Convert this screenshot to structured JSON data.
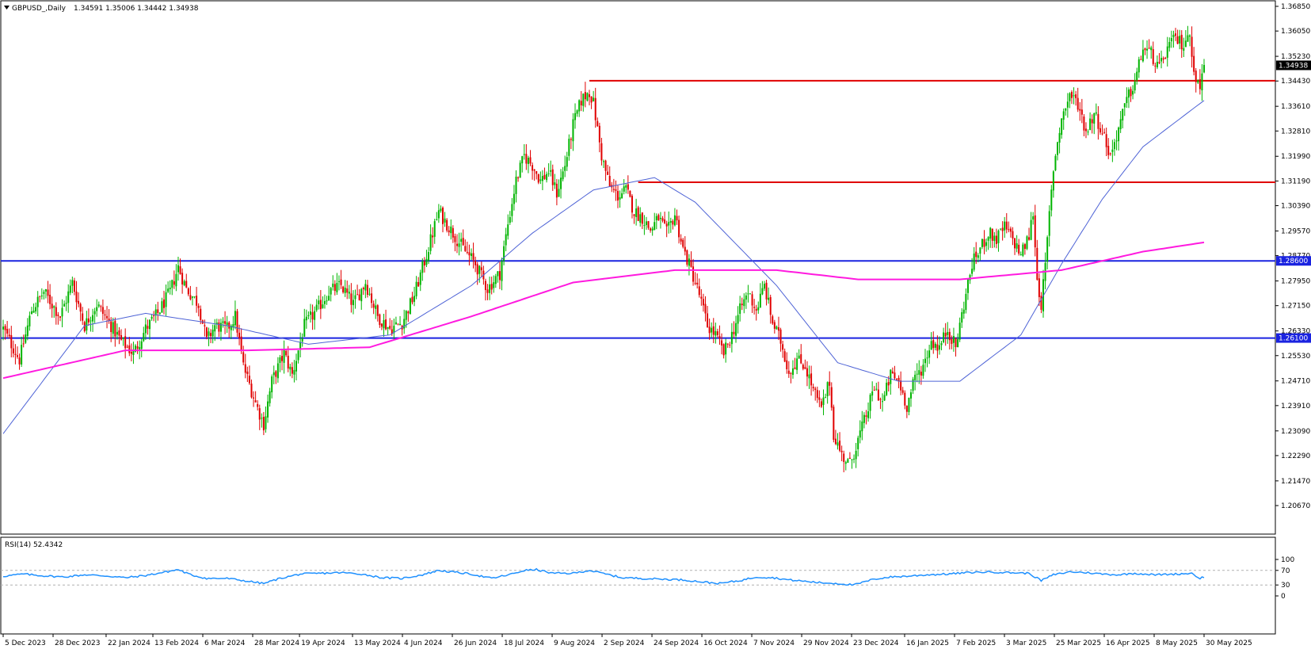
{
  "header": {
    "symbol": "GBPUSD_,Daily",
    "ohlc": "1.34591 1.35006 1.34442 1.34938"
  },
  "colors": {
    "up": "#00b400",
    "down": "#e00000",
    "ma_fast": "#4e63d6",
    "ma_slow": "#ff1adf",
    "level_blue": "#1a23e0",
    "level_red": "#e00000",
    "rsi": "#1e90ff",
    "price_tag_bg": "#000000"
  },
  "chart_data": [
    {
      "type": "candlestick",
      "title": "GBPUSD_,Daily",
      "ylim": [
        1.2067,
        1.3685
      ],
      "y_ticks": [
        "1.36850",
        "1.36050",
        "1.35230",
        "1.34430",
        "1.33610",
        "1.32810",
        "1.31990",
        "1.31190",
        "1.30390",
        "1.29570",
        "1.28770",
        "1.27950",
        "1.27150",
        "1.26330",
        "1.25530",
        "1.24710",
        "1.23910",
        "1.23090",
        "1.22290",
        "1.21470",
        "1.20670"
      ],
      "x_ticks": [
        "5 Dec 2023",
        "28 Dec 2023",
        "22 Jan 2024",
        "13 Feb 2024",
        "6 Mar 2024",
        "28 Mar 2024",
        "19 Apr 2024",
        "13 May 2024",
        "4 Jun 2024",
        "26 Jun 2024",
        "18 Jul 2024",
        "9 Aug 2024",
        "2 Sep 2024",
        "24 Sep 2024",
        "16 Oct 2024",
        "7 Nov 2024",
        "29 Nov 2024",
        "23 Dec 2024",
        "16 Jan 2025",
        "7 Feb 2025",
        "3 Mar 2025",
        "25 Mar 2025",
        "16 Apr 2025",
        "8 May 2025",
        "30 May 2025"
      ],
      "last_price": "1.34938",
      "last_price_value": 1.34938,
      "close_path": [
        [
          0,
          1.264
        ],
        [
          8,
          1.254
        ],
        [
          14,
          1.27
        ],
        [
          20,
          1.276
        ],
        [
          28,
          1.268
        ],
        [
          34,
          1.279
        ],
        [
          40,
          1.265
        ],
        [
          46,
          1.272
        ],
        [
          52,
          1.266
        ],
        [
          58,
          1.26
        ],
        [
          64,
          1.256
        ],
        [
          70,
          1.264
        ],
        [
          76,
          1.269
        ],
        [
          82,
          1.276
        ],
        [
          86,
          1.284
        ],
        [
          90,
          1.277
        ],
        [
          96,
          1.272
        ],
        [
          100,
          1.26
        ],
        [
          104,
          1.265
        ],
        [
          110,
          1.264
        ],
        [
          114,
          1.268
        ],
        [
          118,
          1.252
        ],
        [
          124,
          1.24
        ],
        [
          128,
          1.233
        ],
        [
          132,
          1.247
        ],
        [
          138,
          1.256
        ],
        [
          142,
          1.249
        ],
        [
          148,
          1.265
        ],
        [
          154,
          1.27
        ],
        [
          160,
          1.276
        ],
        [
          166,
          1.278
        ],
        [
          172,
          1.272
        ],
        [
          178,
          1.279
        ],
        [
          184,
          1.268
        ],
        [
          190,
          1.264
        ],
        [
          196,
          1.266
        ],
        [
          202,
          1.275
        ],
        [
          208,
          1.288
        ],
        [
          214,
          1.302
        ],
        [
          220,
          1.296
        ],
        [
          226,
          1.29
        ],
        [
          232,
          1.285
        ],
        [
          238,
          1.277
        ],
        [
          244,
          1.282
        ],
        [
          248,
          1.298
        ],
        [
          252,
          1.312
        ],
        [
          256,
          1.32
        ],
        [
          260,
          1.317
        ],
        [
          264,
          1.312
        ],
        [
          268,
          1.315
        ],
        [
          272,
          1.308
        ],
        [
          276,
          1.317
        ],
        [
          280,
          1.33
        ],
        [
          284,
          1.338
        ],
        [
          288,
          1.341
        ],
        [
          290,
          1.337
        ],
        [
          294,
          1.32
        ],
        [
          298,
          1.31
        ],
        [
          302,
          1.307
        ],
        [
          306,
          1.309
        ],
        [
          310,
          1.302
        ],
        [
          314,
          1.3
        ],
        [
          318,
          1.296
        ],
        [
          322,
          1.3
        ],
        [
          326,
          1.295
        ],
        [
          330,
          1.301
        ],
        [
          334,
          1.29
        ],
        [
          338,
          1.283
        ],
        [
          342,
          1.275
        ],
        [
          346,
          1.265
        ],
        [
          350,
          1.262
        ],
        [
          354,
          1.256
        ],
        [
          358,
          1.262
        ],
        [
          362,
          1.27
        ],
        [
          366,
          1.276
        ],
        [
          370,
          1.27
        ],
        [
          374,
          1.278
        ],
        [
          378,
          1.266
        ],
        [
          382,
          1.26
        ],
        [
          386,
          1.25
        ],
        [
          390,
          1.254
        ],
        [
          394,
          1.252
        ],
        [
          398,
          1.244
        ],
        [
          402,
          1.238
        ],
        [
          406,
          1.247
        ],
        [
          408,
          1.23
        ],
        [
          412,
          1.223
        ],
        [
          416,
          1.22
        ],
        [
          420,
          1.228
        ],
        [
          424,
          1.236
        ],
        [
          428,
          1.245
        ],
        [
          432,
          1.24
        ],
        [
          436,
          1.249
        ],
        [
          440,
          1.247
        ],
        [
          444,
          1.239
        ],
        [
          448,
          1.248
        ],
        [
          452,
          1.252
        ],
        [
          456,
          1.26
        ],
        [
          460,
          1.258
        ],
        [
          464,
          1.264
        ],
        [
          468,
          1.258
        ],
        [
          472,
          1.272
        ],
        [
          476,
          1.285
        ],
        [
          480,
          1.29
        ],
        [
          484,
          1.295
        ],
        [
          488,
          1.293
        ],
        [
          492,
          1.297
        ],
        [
          496,
          1.293
        ],
        [
          500,
          1.288
        ],
        [
          504,
          1.294
        ],
        [
          506,
          1.302
        ],
        [
          508,
          1.28
        ],
        [
          510,
          1.272
        ],
        [
          512,
          1.284
        ],
        [
          514,
          1.301
        ],
        [
          516,
          1.316
        ],
        [
          518,
          1.325
        ],
        [
          520,
          1.332
        ],
        [
          524,
          1.34
        ],
        [
          528,
          1.337
        ],
        [
          532,
          1.328
        ],
        [
          536,
          1.334
        ],
        [
          540,
          1.328
        ],
        [
          544,
          1.32
        ],
        [
          548,
          1.329
        ],
        [
          552,
          1.338
        ],
        [
          556,
          1.344
        ],
        [
          560,
          1.355
        ],
        [
          564,
          1.353
        ],
        [
          568,
          1.348
        ],
        [
          572,
          1.355
        ],
        [
          576,
          1.358
        ],
        [
          580,
          1.356
        ],
        [
          582,
          1.36
        ],
        [
          584,
          1.354
        ],
        [
          586,
          1.345
        ],
        [
          588,
          1.342
        ],
        [
          590,
          1.3494
        ]
      ],
      "candle_count": 591,
      "x_tick_indices": [
        0,
        16,
        33,
        48,
        64,
        80,
        95,
        112,
        128,
        144,
        160,
        176,
        192,
        208,
        224,
        240,
        256,
        272,
        289,
        305,
        321,
        337,
        353,
        369,
        385
      ],
      "horizontal_levels": [
        {
          "value": 1.286,
          "label": "1.28600",
          "color": "blue"
        },
        {
          "value": 1.261,
          "label": "1.26100",
          "color": "blue"
        },
        {
          "value": 1.3444,
          "color": "red",
          "from_index": 288
        },
        {
          "value": 1.3115,
          "color": "red",
          "from_index": 312
        }
      ],
      "moving_averages": [
        {
          "color": "blue",
          "path": [
            [
              0,
              1.23
            ],
            [
              40,
              1.265
            ],
            [
              70,
              1.269
            ],
            [
              110,
              1.265
            ],
            [
              150,
              1.259
            ],
            [
              190,
              1.262
            ],
            [
              230,
              1.278
            ],
            [
              260,
              1.295
            ],
            [
              290,
              1.309
            ],
            [
              320,
              1.313
            ],
            [
              340,
              1.305
            ],
            [
              380,
              1.278
            ],
            [
              410,
              1.253
            ],
            [
              440,
              1.247
            ],
            [
              470,
              1.247
            ],
            [
              500,
              1.262
            ],
            [
              520,
              1.285
            ],
            [
              540,
              1.306
            ],
            [
              560,
              1.323
            ],
            [
              590,
              1.338
            ]
          ]
        },
        {
          "color": "magenta",
          "path": [
            [
              0,
              1.248
            ],
            [
              60,
              1.257
            ],
            [
              120,
              1.257
            ],
            [
              180,
              1.258
            ],
            [
              230,
              1.268
            ],
            [
              280,
              1.279
            ],
            [
              330,
              1.283
            ],
            [
              380,
              1.283
            ],
            [
              420,
              1.28
            ],
            [
              470,
              1.28
            ],
            [
              520,
              1.283
            ],
            [
              560,
              1.289
            ],
            [
              590,
              1.292
            ]
          ]
        }
      ]
    },
    {
      "type": "line",
      "title": "RSI(14) 52.4342",
      "ylim": [
        0,
        100
      ],
      "y_ticks": [
        "100",
        "70",
        "30",
        "0"
      ],
      "dashed_levels": [
        70,
        30
      ],
      "path": [
        [
          0,
          54
        ],
        [
          10,
          60
        ],
        [
          20,
          55
        ],
        [
          30,
          52
        ],
        [
          40,
          58
        ],
        [
          50,
          55
        ],
        [
          60,
          50
        ],
        [
          70,
          56
        ],
        [
          80,
          66
        ],
        [
          86,
          72
        ],
        [
          92,
          58
        ],
        [
          100,
          48
        ],
        [
          110,
          48
        ],
        [
          118,
          42
        ],
        [
          128,
          34
        ],
        [
          136,
          48
        ],
        [
          146,
          60
        ],
        [
          156,
          62
        ],
        [
          166,
          64
        ],
        [
          176,
          60
        ],
        [
          186,
          50
        ],
        [
          196,
          48
        ],
        [
          206,
          58
        ],
        [
          214,
          70
        ],
        [
          220,
          66
        ],
        [
          230,
          60
        ],
        [
          240,
          48
        ],
        [
          250,
          60
        ],
        [
          256,
          70
        ],
        [
          262,
          72
        ],
        [
          270,
          62
        ],
        [
          280,
          62
        ],
        [
          288,
          70
        ],
        [
          296,
          60
        ],
        [
          304,
          50
        ],
        [
          314,
          48
        ],
        [
          324,
          46
        ],
        [
          334,
          44
        ],
        [
          344,
          38
        ],
        [
          352,
          34
        ],
        [
          362,
          42
        ],
        [
          370,
          52
        ],
        [
          378,
          50
        ],
        [
          386,
          44
        ],
        [
          394,
          40
        ],
        [
          402,
          36
        ],
        [
          410,
          34
        ],
        [
          418,
          30
        ],
        [
          428,
          46
        ],
        [
          436,
          52
        ],
        [
          444,
          54
        ],
        [
          454,
          58
        ],
        [
          464,
          60
        ],
        [
          474,
          64
        ],
        [
          484,
          66
        ],
        [
          494,
          64
        ],
        [
          504,
          62
        ],
        [
          510,
          42
        ],
        [
          516,
          58
        ],
        [
          524,
          66
        ],
        [
          532,
          64
        ],
        [
          540,
          60
        ],
        [
          548,
          58
        ],
        [
          556,
          62
        ],
        [
          566,
          58
        ],
        [
          576,
          60
        ],
        [
          584,
          62
        ],
        [
          588,
          48
        ],
        [
          590,
          52.4342
        ]
      ]
    }
  ]
}
